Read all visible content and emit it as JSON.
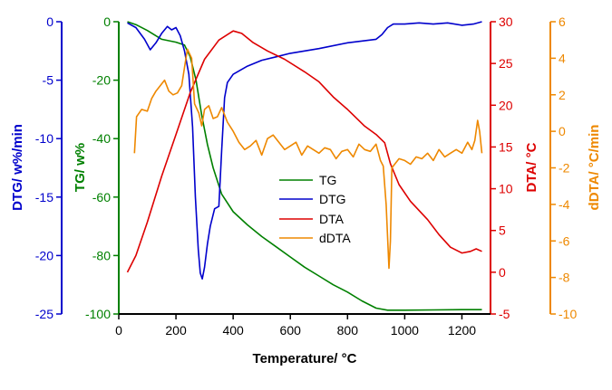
{
  "chart_data": {
    "type": "line",
    "xlabel": "Temperature/ °C",
    "xlim": [
      0,
      1300
    ],
    "xticks": [
      0,
      200,
      400,
      600,
      800,
      1000,
      1200
    ],
    "axes": {
      "dtg": {
        "label": "DTG/ w%/min",
        "color": "#0000cc",
        "lim": [
          -25,
          0
        ],
        "ticks": [
          0,
          -5,
          -10,
          -15,
          -20,
          -25
        ]
      },
      "tg": {
        "label": "TG/ w%",
        "color": "#008000",
        "lim": [
          -100,
          0
        ],
        "ticks": [
          0,
          -20,
          -40,
          -60,
          -80,
          -100
        ]
      },
      "dta": {
        "label": "DTA/ °C",
        "color": "#dd0000",
        "lim": [
          -5,
          30
        ],
        "ticks": [
          30,
          25,
          20,
          15,
          10,
          5,
          0,
          -5
        ]
      },
      "ddta": {
        "label": "dDTA/ °C/min",
        "color": "#ee8800",
        "lim": [
          -10,
          6
        ],
        "ticks": [
          6,
          4,
          2,
          0,
          -2,
          -4,
          -6,
          -8,
          -10
        ]
      }
    },
    "legend_position": "center",
    "series": [
      {
        "name": "TG",
        "axis": "tg",
        "color": "#008000",
        "x": [
          30,
          60,
          100,
          150,
          200,
          230,
          250,
          270,
          290,
          310,
          330,
          360,
          400,
          450,
          500,
          550,
          600,
          650,
          700,
          750,
          800,
          850,
          900,
          940,
          960,
          1000,
          1100,
          1200,
          1270
        ],
        "y": [
          0,
          -1,
          -3,
          -6,
          -7,
          -8,
          -12,
          -20,
          -32,
          -42,
          -50,
          -59,
          -65,
          -69.5,
          -73.5,
          -77,
          -80.5,
          -84,
          -87,
          -90,
          -92.5,
          -95.5,
          -98,
          -98.7,
          -98.7,
          -98.7,
          -98.6,
          -98.5,
          -98.5
        ]
      },
      {
        "name": "DTG",
        "axis": "dtg",
        "color": "#0000cc",
        "x": [
          30,
          60,
          90,
          110,
          130,
          150,
          170,
          185,
          200,
          215,
          230,
          245,
          258,
          268,
          278,
          285,
          292,
          300,
          310,
          320,
          335,
          350,
          360,
          370,
          380,
          400,
          450,
          500,
          550,
          600,
          700,
          800,
          900,
          920,
          940,
          960,
          1000,
          1050,
          1100,
          1150,
          1200,
          1240,
          1270
        ],
        "y": [
          -0.1,
          -0.5,
          -1.5,
          -2.4,
          -1.8,
          -1,
          -0.4,
          -0.7,
          -0.5,
          -1.2,
          -2.5,
          -4.5,
          -9,
          -15,
          -19.5,
          -21.5,
          -22,
          -21,
          -19,
          -17.5,
          -16,
          -15.8,
          -11,
          -6.5,
          -5.2,
          -4.5,
          -3.8,
          -3.3,
          -3,
          -2.7,
          -2.3,
          -1.8,
          -1.5,
          -1.1,
          -0.5,
          -0.2,
          -0.2,
          -0.1,
          -0.2,
          -0.1,
          -0.3,
          -0.2,
          0
        ]
      },
      {
        "name": "DTA",
        "axis": "dta",
        "color": "#dd0000",
        "x": [
          30,
          60,
          100,
          150,
          200,
          250,
          300,
          350,
          400,
          430,
          470,
          520,
          580,
          650,
          700,
          750,
          800,
          860,
          900,
          930,
          950,
          980,
          1020,
          1080,
          1120,
          1160,
          1200,
          1230,
          1250,
          1270
        ],
        "y": [
          0,
          2,
          6,
          11.5,
          16.5,
          21.5,
          25.5,
          27.8,
          28.9,
          28.6,
          27.5,
          26.5,
          25.5,
          24,
          22.8,
          21,
          19.5,
          17.5,
          16.5,
          15.5,
          13,
          10.5,
          8.5,
          6.3,
          4.5,
          3,
          2.3,
          2.5,
          2.8,
          2.5
        ]
      },
      {
        "name": "dDTA",
        "axis": "ddta",
        "color": "#ee8800",
        "x": [
          55,
          62,
          80,
          100,
          115,
          130,
          145,
          160,
          175,
          190,
          205,
          220,
          230,
          240,
          255,
          265,
          280,
          290,
          300,
          315,
          330,
          345,
          360,
          380,
          400,
          420,
          440,
          460,
          480,
          500,
          520,
          540,
          560,
          580,
          600,
          620,
          640,
          660,
          680,
          700,
          720,
          740,
          760,
          780,
          800,
          820,
          840,
          860,
          880,
          900,
          915,
          925,
          935,
          945,
          950,
          955,
          965,
          980,
          1000,
          1020,
          1040,
          1060,
          1080,
          1100,
          1120,
          1140,
          1160,
          1180,
          1200,
          1220,
          1235,
          1245,
          1255,
          1262,
          1270
        ],
        "y": [
          -1.2,
          0.8,
          1.2,
          1.1,
          1.8,
          2.2,
          2.5,
          2.8,
          2.2,
          2.0,
          2.1,
          2.5,
          3.5,
          4.5,
          4.0,
          1.5,
          1.0,
          0.3,
          1.2,
          1.4,
          0.7,
          0.8,
          1.3,
          0.5,
          0.0,
          -0.6,
          -1.0,
          -0.8,
          -0.5,
          -1.3,
          -0.4,
          -0.2,
          -0.6,
          -1.0,
          -0.8,
          -0.6,
          -1.3,
          -0.8,
          -1.0,
          -1.2,
          -0.9,
          -1.0,
          -1.5,
          -1.1,
          -1.0,
          -1.4,
          -0.7,
          -1.0,
          -1.1,
          -0.7,
          -1.6,
          -1.9,
          -4.0,
          -7.5,
          -6.0,
          -2.0,
          -1.8,
          -1.5,
          -1.6,
          -1.8,
          -1.4,
          -1.5,
          -1.2,
          -1.6,
          -1.0,
          -1.4,
          -1.2,
          -1.0,
          -1.2,
          -0.6,
          -1.0,
          -0.5,
          0.6,
          0.0,
          -1.2
        ]
      }
    ]
  }
}
